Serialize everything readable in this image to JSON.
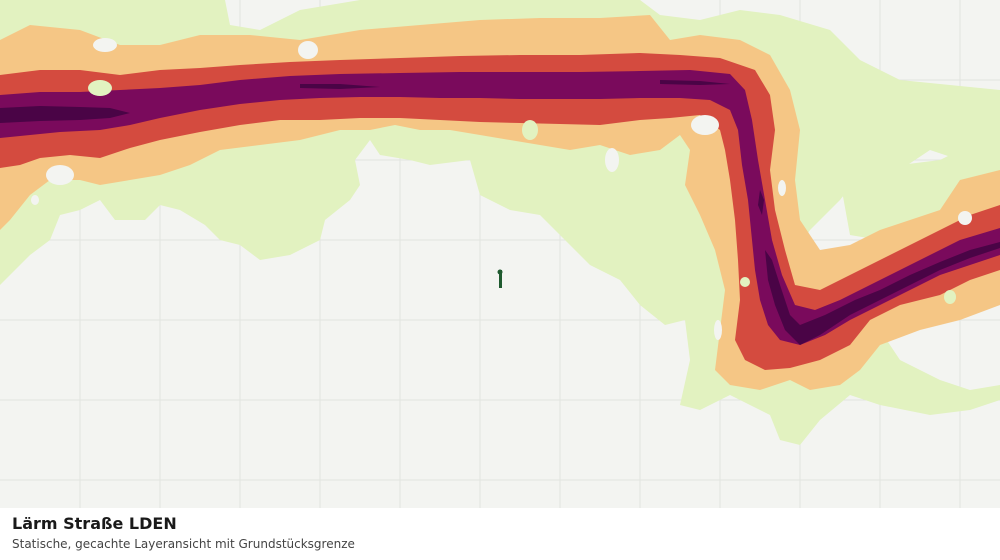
{
  "caption": {
    "title": "Lärm Straße LDEN",
    "subtitle": "Statische, gecachte Layeransicht mit Grundstücksgrenze"
  },
  "map": {
    "background_color": "#f3f4f1",
    "grid_color": "#e2e4df",
    "noise_classes": [
      {
        "color": "#e2f2c0"
      },
      {
        "color": "#f5c685"
      },
      {
        "color": "#d44b3f"
      },
      {
        "color": "#7a0a5c"
      },
      {
        "color": "#4a0446"
      }
    ],
    "marker": {
      "icon": "parcel-boundary-marker-icon",
      "color": "#1f5a2f"
    }
  }
}
